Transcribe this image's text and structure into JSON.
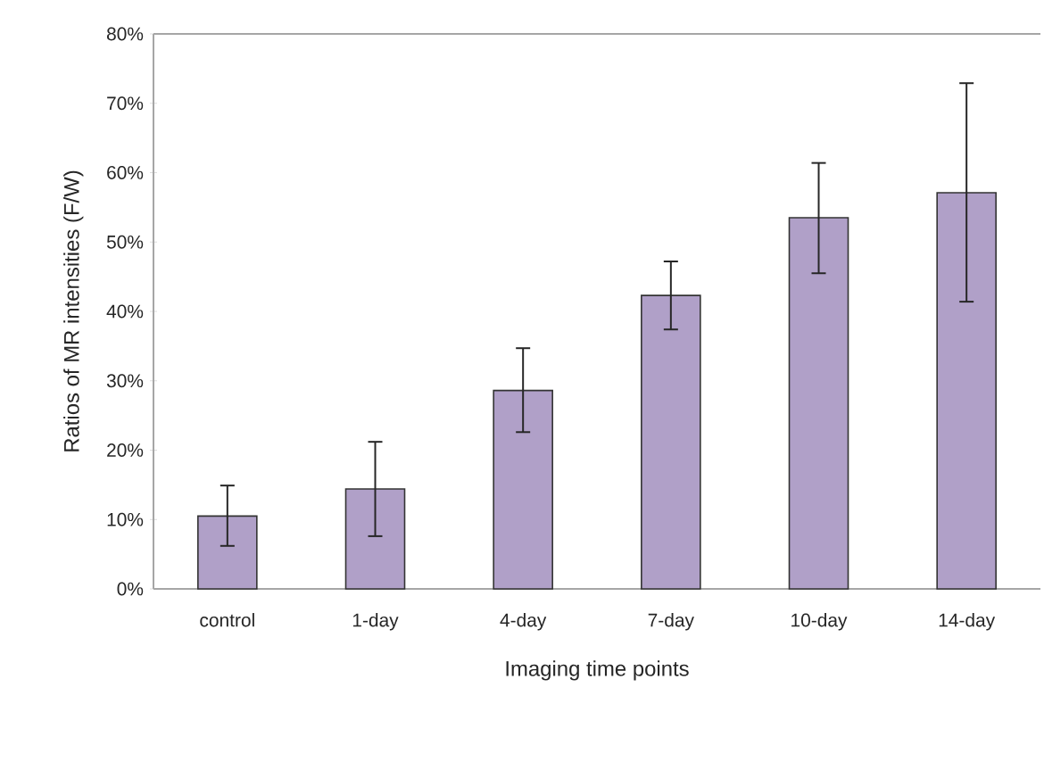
{
  "chart_data": {
    "type": "bar",
    "xlabel": "Imaging time points",
    "ylabel": "Ratios of MR intensities (F/W)",
    "categories": [
      "control",
      "1-day",
      "4-day",
      "7-day",
      "10-day",
      "14-day"
    ],
    "values": [
      10.5,
      14.4,
      28.6,
      42.3,
      53.5,
      57.1
    ],
    "errors": [
      [
        6.2,
        14.9
      ],
      [
        7.6,
        21.2
      ],
      [
        22.6,
        34.7
      ],
      [
        37.4,
        47.2
      ],
      [
        45.5,
        61.4
      ],
      [
        41.4,
        72.9
      ]
    ],
    "color": "#b0a0c8",
    "ylim": [
      0,
      80
    ],
    "yticks": [
      {
        "value": 0,
        "label": "0%"
      },
      {
        "value": 10,
        "label": "10%"
      },
      {
        "value": 20,
        "label": "20%"
      },
      {
        "value": 30,
        "label": "30%"
      },
      {
        "value": 40,
        "label": "40%"
      },
      {
        "value": 50,
        "label": "50%"
      },
      {
        "value": 60,
        "label": "60%"
      },
      {
        "value": 70,
        "label": "70%"
      },
      {
        "value": 80,
        "label": "80%"
      }
    ],
    "grid": false
  }
}
